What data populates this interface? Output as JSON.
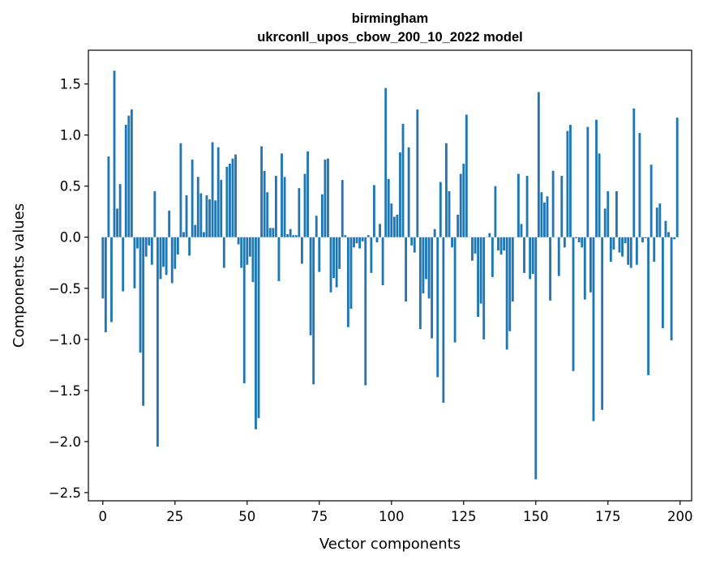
{
  "chart_data": {
    "type": "bar",
    "title": "birmingham",
    "subtitle": "ukrconll_upos_cbow_200_10_2022 model",
    "xlabel": "Vector components",
    "ylabel": "Components values",
    "xlim": [
      -5,
      204
    ],
    "ylim": [
      -2.58,
      1.83
    ],
    "xticks": [
      0,
      25,
      50,
      75,
      100,
      125,
      150,
      175,
      200
    ],
    "yticks": [
      -2.5,
      -2.0,
      -1.5,
      -1.0,
      -0.5,
      0.0,
      0.5,
      1.0,
      1.5
    ],
    "ytick_labels": [
      "−2.5",
      "−2.0",
      "−1.5",
      "−1.0",
      "−0.5",
      "0.0",
      "0.5",
      "1.0",
      "1.5"
    ],
    "bar_color": "#1f77b4",
    "values": [
      -0.6,
      -0.93,
      0.79,
      -0.83,
      1.63,
      0.28,
      0.52,
      -0.53,
      1.1,
      1.19,
      1.25,
      -0.5,
      -0.11,
      -1.13,
      -1.65,
      -0.19,
      -0.08,
      -0.27,
      0.45,
      -2.05,
      -0.41,
      -0.29,
      -0.37,
      0.26,
      -0.45,
      -0.31,
      -0.17,
      0.92,
      0.05,
      0.41,
      -0.18,
      0.76,
      0.12,
      0.59,
      0.43,
      0.05,
      0.41,
      0.37,
      0.93,
      0.36,
      0.88,
      0.56,
      -0.3,
      0.69,
      0.72,
      0.77,
      0.81,
      -0.07,
      -0.3,
      -1.43,
      -0.27,
      -0.19,
      -0.44,
      -1.88,
      -1.77,
      0.89,
      0.65,
      0.44,
      0.09,
      0.09,
      0.6,
      -0.43,
      0.82,
      0.59,
      0.03,
      0.08,
      0.02,
      0.02,
      0.48,
      -0.26,
      0.62,
      0.84,
      -0.96,
      -1.44,
      0.21,
      -0.34,
      0.42,
      0.76,
      0.77,
      -0.54,
      -0.4,
      -0.49,
      -0.31,
      0.56,
      0.02,
      -0.88,
      -0.7,
      -0.1,
      -0.06,
      -0.11,
      -0.04,
      -1.45,
      0.02,
      -0.35,
      0.51,
      -0.05,
      0.13,
      -0.47,
      1.46,
      0.57,
      0.33,
      0.2,
      0.22,
      0.83,
      1.11,
      -0.63,
      0.88,
      -0.08,
      -0.15,
      1.25,
      -0.9,
      -0.55,
      -0.41,
      -0.6,
      -0.99,
      0.08,
      -1.37,
      0.54,
      -1.62,
      0.92,
      0.45,
      -0.1,
      -1.03,
      0.22,
      0.62,
      0.72,
      1.2,
      0.0,
      -0.23,
      -0.16,
      -0.78,
      -0.65,
      -1.0,
      0.0,
      0.04,
      -0.39,
      0.5,
      -0.13,
      -0.17,
      -0.13,
      -1.1,
      -0.92,
      -0.63,
      0.0,
      0.62,
      0.13,
      -0.35,
      0.6,
      -0.41,
      -0.36,
      -2.37,
      1.42,
      0.44,
      0.34,
      0.4,
      -0.62,
      0.65,
      0.0,
      -0.38,
      0.6,
      -0.1,
      1.04,
      1.1,
      -1.31,
      -0.01,
      -0.05,
      -0.1,
      -0.61,
      1.08,
      -0.54,
      -1.8,
      1.15,
      0.82,
      -1.69,
      0.28,
      0.45,
      -0.24,
      -0.12,
      0.45,
      -0.15,
      -0.19,
      -0.06,
      -0.27,
      -0.3,
      1.26,
      -0.27,
      1.02,
      -0.05,
      -0.01,
      -1.35,
      0.71,
      -0.24,
      0.29,
      0.33,
      -0.89,
      0.16,
      0.05,
      -1.01,
      -0.02,
      1.17
    ]
  }
}
